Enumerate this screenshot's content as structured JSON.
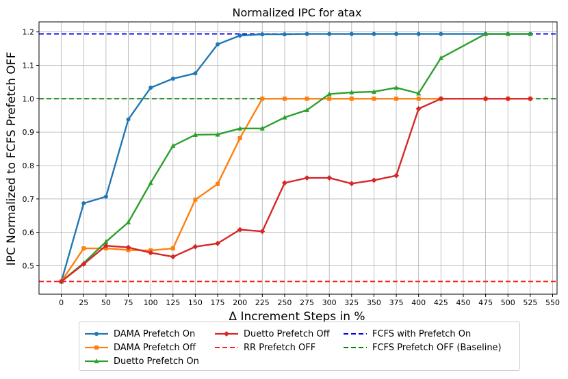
{
  "chart_data": {
    "type": "line",
    "title": "Normalized IPC for atax",
    "xlabel": "Δ Increment Steps in %",
    "ylabel": "IPC Normalized to FCFS Prefetch OFF",
    "xlim": [
      -25,
      555
    ],
    "ylim": [
      0.415,
      1.23
    ],
    "x_ticks": [
      "0",
      "25",
      "50",
      "75",
      "100",
      "125",
      "150",
      "175",
      "200",
      "225",
      "250",
      "275",
      "300",
      "325",
      "350",
      "375",
      "400",
      "425",
      "450",
      "475",
      "500",
      "525",
      "550"
    ],
    "y_ticks": [
      "0.5",
      "0.6",
      "0.7",
      "0.8",
      "0.9",
      "1.0",
      "1.1",
      "1.2"
    ],
    "grid": true,
    "legend_position": "below",
    "series": [
      {
        "name": "DAMA Prefetch On",
        "color": "#1f77b4",
        "marker": "circle",
        "x": [
          0,
          25,
          50,
          75,
          100,
          125,
          150,
          175,
          200,
          225,
          250,
          275,
          300,
          325,
          350,
          375,
          400,
          425,
          475,
          500,
          525
        ],
        "values": [
          0.453,
          0.687,
          0.707,
          0.938,
          1.033,
          1.06,
          1.076,
          1.163,
          1.189,
          1.193,
          1.193,
          1.194,
          1.194,
          1.194,
          1.194,
          1.194,
          1.194,
          1.194,
          1.194,
          1.194,
          1.194
        ]
      },
      {
        "name": "DAMA Prefetch Off",
        "color": "#ff7f0e",
        "marker": "square",
        "x": [
          0,
          25,
          50,
          75,
          100,
          125,
          150,
          175,
          200,
          225,
          250,
          275,
          300,
          325,
          350,
          375,
          400,
          425,
          475,
          500,
          525
        ],
        "values": [
          0.453,
          0.552,
          0.552,
          0.547,
          0.546,
          0.552,
          0.698,
          0.745,
          0.882,
          1.0,
          1.0,
          1.0,
          1.0,
          1.0,
          1.0,
          1.0,
          1.0,
          1.0,
          1.0,
          1.0,
          1.0
        ]
      },
      {
        "name": "Duetto Prefetch On",
        "color": "#2ca02c",
        "marker": "triangle",
        "x": [
          0,
          25,
          50,
          75,
          100,
          125,
          150,
          175,
          200,
          225,
          250,
          275,
          300,
          325,
          350,
          375,
          400,
          425,
          475,
          500,
          525
        ],
        "values": [
          0.453,
          0.508,
          0.572,
          0.63,
          0.748,
          0.859,
          0.892,
          0.893,
          0.911,
          0.911,
          0.944,
          0.966,
          1.014,
          1.019,
          1.021,
          1.033,
          1.016,
          1.122,
          1.194,
          1.194,
          1.194
        ]
      },
      {
        "name": "Duetto Prefetch Off",
        "color": "#d62728",
        "marker": "diamond",
        "x": [
          0,
          25,
          50,
          75,
          100,
          125,
          150,
          175,
          200,
          225,
          250,
          275,
          300,
          325,
          350,
          375,
          400,
          425,
          475,
          500,
          525
        ],
        "values": [
          0.453,
          0.505,
          0.56,
          0.555,
          0.539,
          0.527,
          0.557,
          0.567,
          0.608,
          0.603,
          0.748,
          0.763,
          0.763,
          0.746,
          0.756,
          0.77,
          0.97,
          1.0,
          1.0,
          1.0,
          1.0
        ]
      }
    ],
    "reference_lines": [
      {
        "name": "RR Prefetch OFF",
        "color": "#ff1f1f",
        "value": 0.453
      },
      {
        "name": "FCFS with Prefetch On",
        "color": "#0000ee",
        "value": 1.194
      },
      {
        "name": "FCFS Prefetch OFF (Baseline)",
        "color": "#008000",
        "value": 1.0
      }
    ]
  },
  "legend": {
    "items": [
      {
        "label": "DAMA Prefetch On",
        "color": "#1f77b4",
        "marker": "circle",
        "dashed": false
      },
      {
        "label": "DAMA Prefetch Off",
        "color": "#ff7f0e",
        "marker": "square",
        "dashed": false
      },
      {
        "label": "Duetto Prefetch On",
        "color": "#2ca02c",
        "marker": "triangle",
        "dashed": false
      },
      {
        "label": "Duetto Prefetch Off",
        "color": "#d62728",
        "marker": "diamond",
        "dashed": false
      },
      {
        "label": "RR Prefetch OFF",
        "color": "#ff1f1f",
        "marker": "none",
        "dashed": true
      },
      {
        "label": "FCFS with Prefetch On",
        "color": "#0000ee",
        "marker": "none",
        "dashed": true
      },
      {
        "label": "FCFS Prefetch OFF (Baseline)",
        "color": "#008000",
        "marker": "none",
        "dashed": true
      }
    ]
  }
}
